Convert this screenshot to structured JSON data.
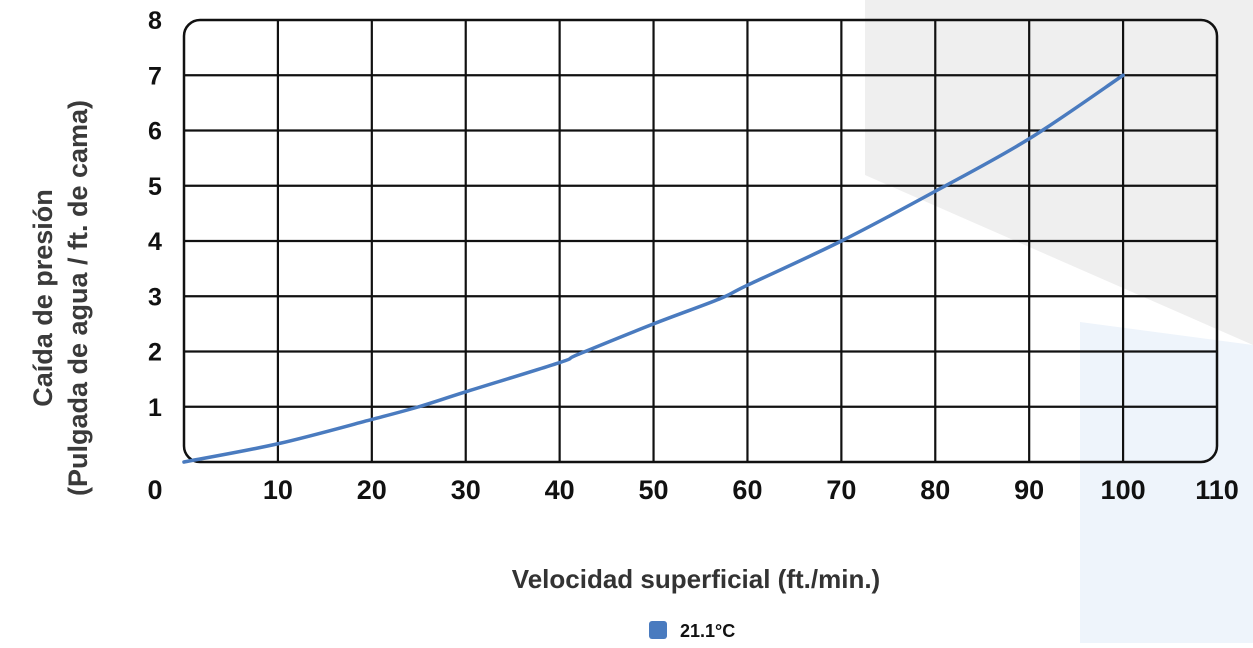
{
  "chart_data": {
    "type": "line",
    "title": "",
    "xlabel": "Velocidad superficial (ft./min.)",
    "ylabel_line1": "Caída de presión",
    "ylabel_line2": "(Pulgada de agua / ft. de cama)",
    "xlim": [
      0,
      110
    ],
    "ylim": [
      0,
      8
    ],
    "x_ticks": [
      0,
      10,
      20,
      30,
      40,
      50,
      60,
      70,
      80,
      90,
      100,
      110
    ],
    "y_ticks": [
      0,
      1,
      2,
      3,
      4,
      5,
      6,
      7,
      8
    ],
    "grid": true,
    "legend_position": "bottom-center",
    "series": [
      {
        "name": "21.1°C",
        "color": "#4a7bbf",
        "x": [
          0,
          10,
          20,
          25,
          30,
          40,
          42,
          50,
          57,
          60,
          70,
          80,
          90,
          100
        ],
        "y": [
          0,
          0.33,
          0.77,
          1.0,
          1.27,
          1.8,
          1.95,
          2.5,
          2.95,
          3.2,
          4.0,
          4.9,
          5.85,
          7.0
        ]
      }
    ]
  },
  "decor": {
    "background_shape_gray": "#efefef",
    "background_shape_blue": "#eef4fb",
    "grid_color": "#111111",
    "text_color": "#111111",
    "ylabel_color": "#3a3a3a"
  }
}
